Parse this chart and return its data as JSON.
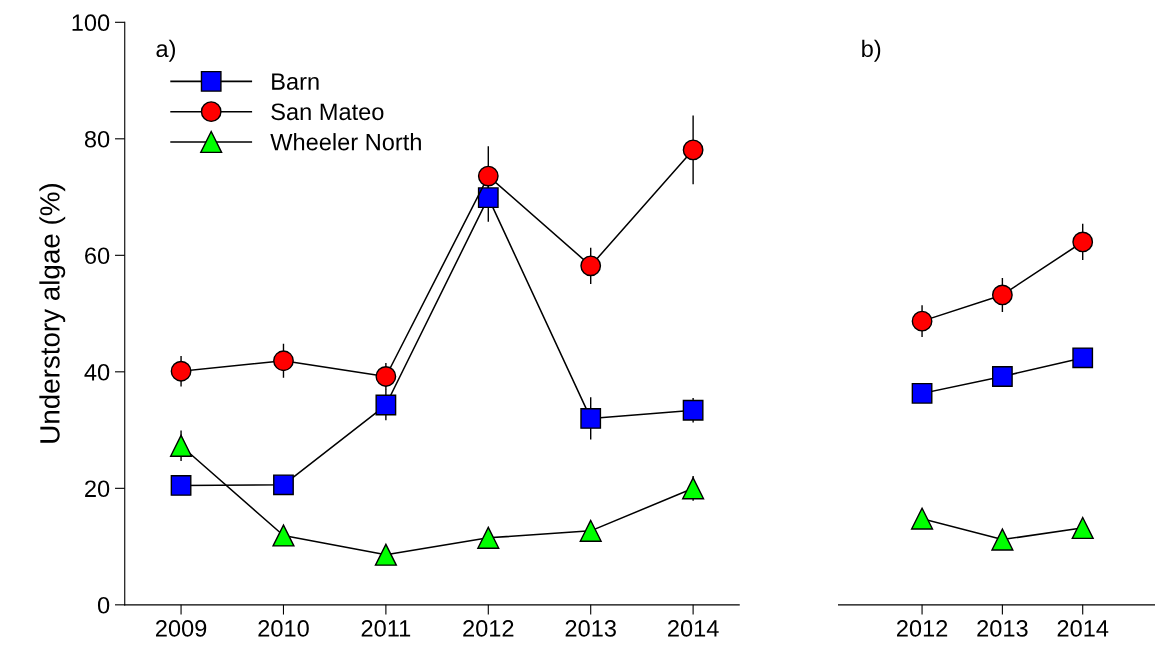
{
  "chart_data": [
    {
      "type": "line",
      "title": "a)",
      "ylabel": "Understory algae (%)",
      "categories": [
        "2009",
        "2010",
        "2011",
        "2012",
        "2013",
        "2014"
      ],
      "ylim": [
        0,
        100
      ],
      "yticks": [
        0,
        20,
        40,
        60,
        80,
        100
      ],
      "grid": false,
      "legend": "top left",
      "series": [
        {
          "name": "Barn",
          "color": "#0000ff",
          "marker": "square",
          "values": [
            20.5,
            20.6,
            34.3,
            69.9,
            32.0,
            33.4
          ],
          "errors": [
            null,
            null,
            2.5,
            4.0,
            3.5,
            2.0
          ]
        },
        {
          "name": "San Mateo",
          "color": "#ff0000",
          "marker": "circle",
          "values": [
            40.1,
            41.9,
            39.2,
            73.6,
            58.2,
            78.1
          ],
          "errors": [
            2.5,
            2.8,
            2.2,
            5.0,
            3.0,
            5.8
          ]
        },
        {
          "name": "Wheeler North",
          "color": "#00ff00",
          "marker": "triangle",
          "values": [
            27.3,
            11.9,
            8.6,
            11.5,
            12.7,
            20.0
          ],
          "errors": [
            2.5,
            null,
            null,
            null,
            null,
            2.0
          ]
        }
      ]
    },
    {
      "type": "line",
      "title": "b)",
      "categories": [
        "2012",
        "2013",
        "2014"
      ],
      "ylim": [
        0,
        100
      ],
      "tick_labels": "x",
      "grid": false,
      "series": [
        {
          "color": "#0000ff",
          "marker": "square",
          "values": [
            36.3,
            39.2,
            42.4
          ]
        },
        {
          "color": "#ff0000",
          "marker": "circle",
          "values": [
            48.7,
            53.2,
            62.3
          ],
          "errors": [
            2.6,
            2.8,
            3.0
          ]
        },
        {
          "color": "#00ff00",
          "marker": "triangle",
          "values": [
            14.8,
            11.2,
            13.2
          ]
        }
      ]
    }
  ]
}
